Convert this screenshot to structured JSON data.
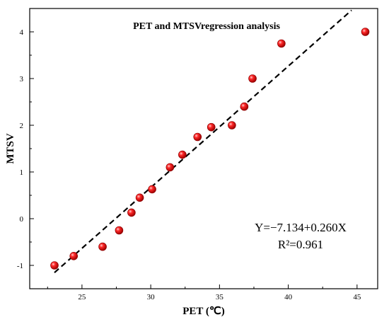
{
  "chart_data": {
    "type": "scatter",
    "title": "PET and MTSVregression analysis",
    "xlabel": "PET (℃)",
    "ylabel": "MTSV",
    "xlim": [
      21.2,
      46.5
    ],
    "ylim": [
      -1.5,
      4.5
    ],
    "xticks": [
      25,
      30,
      35,
      40,
      45
    ],
    "yticks": [
      -1,
      0,
      1,
      2,
      3,
      4
    ],
    "grid": false,
    "points": [
      {
        "x": 23.0,
        "y": -1.0
      },
      {
        "x": 24.4,
        "y": -0.8
      },
      {
        "x": 26.5,
        "y": -0.6
      },
      {
        "x": 27.7,
        "y": -0.25
      },
      {
        "x": 28.6,
        "y": 0.13
      },
      {
        "x": 29.2,
        "y": 0.45
      },
      {
        "x": 30.1,
        "y": 0.63
      },
      {
        "x": 31.4,
        "y": 1.1
      },
      {
        "x": 32.3,
        "y": 1.37
      },
      {
        "x": 33.4,
        "y": 1.75
      },
      {
        "x": 34.4,
        "y": 1.96
      },
      {
        "x": 35.9,
        "y": 2.0
      },
      {
        "x": 36.8,
        "y": 2.4
      },
      {
        "x": 37.4,
        "y": 3.0
      },
      {
        "x": 39.5,
        "y": 3.75
      },
      {
        "x": 45.6,
        "y": 4.0
      }
    ],
    "regression": {
      "intercept": -7.134,
      "slope": 0.26,
      "x_range": [
        23.0,
        44.6
      ],
      "style": "dashed",
      "equation": "Y=−7.134+0.260X",
      "r2": "R²=0.961"
    },
    "colors": {
      "point": "#ee1111",
      "line": "#000000"
    }
  }
}
